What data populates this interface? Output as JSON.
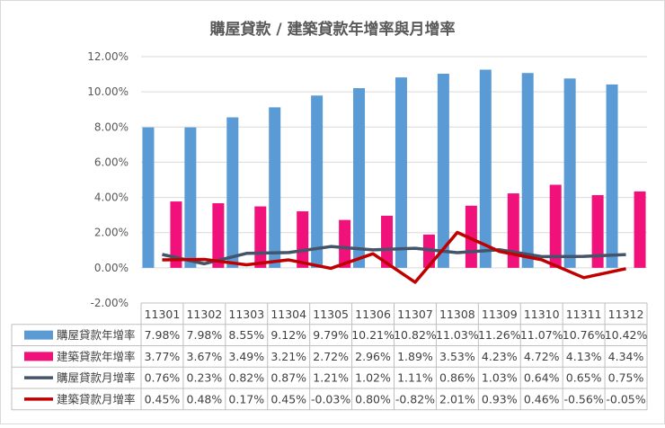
{
  "chart_data": {
    "type": "bar",
    "title": "購屋貸款 / 建築貸款年增率與月增率",
    "categories": [
      "11301",
      "11302",
      "11303",
      "11304",
      "11305",
      "11306",
      "11307",
      "11308",
      "11309",
      "11310",
      "11311",
      "11312"
    ],
    "ylim": [
      -2,
      12
    ],
    "ytick_labels": [
      "12.00%",
      "10.00%",
      "8.00%",
      "6.00%",
      "4.00%",
      "2.00%",
      "0.00%",
      "-2.00%"
    ],
    "grid": true,
    "legend": "data-table",
    "series": [
      {
        "name": "購屋貸款年增率",
        "kind": "bar",
        "color": "#5B9BD5",
        "values": [
          7.98,
          7.98,
          8.55,
          9.12,
          9.79,
          10.21,
          10.82,
          11.03,
          11.26,
          11.07,
          10.76,
          10.42
        ],
        "labels": [
          "7.98%",
          "7.98%",
          "8.55%",
          "9.12%",
          "9.79%",
          "10.21%",
          "10.82%",
          "11.03%",
          "11.26%",
          "11.07%",
          "10.76%",
          "10.42%"
        ]
      },
      {
        "name": "建築貸款年增率",
        "kind": "bar",
        "color": "#F0127A",
        "values": [
          3.77,
          3.67,
          3.49,
          3.21,
          2.72,
          2.96,
          1.89,
          3.53,
          4.23,
          4.72,
          4.13,
          4.34
        ],
        "labels": [
          "3.77%",
          "3.67%",
          "3.49%",
          "3.21%",
          "2.72%",
          "2.96%",
          "1.89%",
          "3.53%",
          "4.23%",
          "4.72%",
          "4.13%",
          "4.34%"
        ]
      },
      {
        "name": "購屋貸款月增率",
        "kind": "line",
        "color": "#44546A",
        "values": [
          0.76,
          0.23,
          0.82,
          0.87,
          1.21,
          1.02,
          1.11,
          0.86,
          1.03,
          0.64,
          0.65,
          0.75
        ],
        "labels": [
          "0.76%",
          "0.23%",
          "0.82%",
          "0.87%",
          "1.21%",
          "1.02%",
          "1.11%",
          "0.86%",
          "1.03%",
          "0.64%",
          "0.65%",
          "0.75%"
        ]
      },
      {
        "name": "建築貸款月增率",
        "kind": "line",
        "color": "#C00000",
        "values": [
          0.45,
          0.48,
          0.17,
          0.45,
          -0.03,
          0.8,
          -0.82,
          2.01,
          0.93,
          0.46,
          -0.56,
          -0.05
        ],
        "labels": [
          "0.45%",
          "0.48%",
          "0.17%",
          "0.45%",
          "-0.03%",
          "0.80%",
          "-0.82%",
          "2.01%",
          "0.93%",
          "0.46%",
          "-0.56%",
          "-0.05%"
        ]
      }
    ]
  }
}
